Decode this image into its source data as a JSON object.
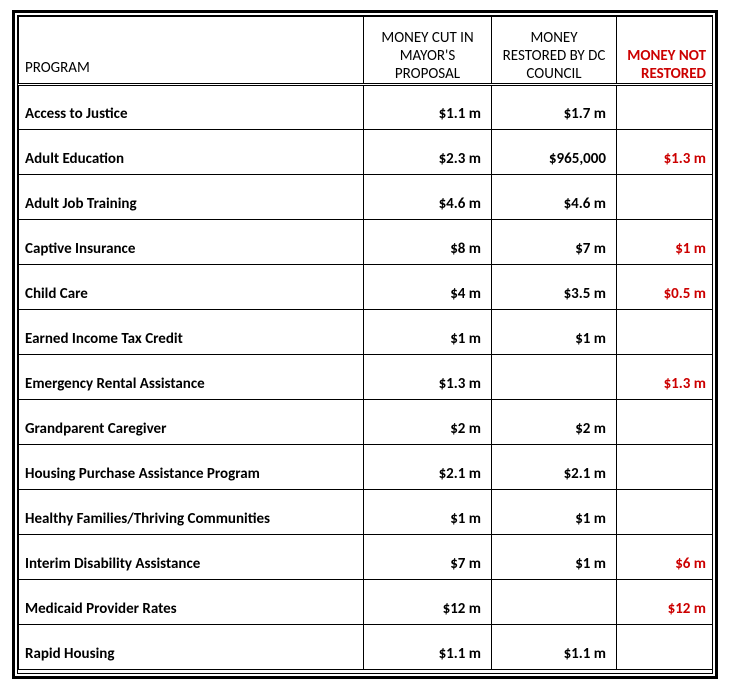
{
  "table": {
    "headers": {
      "program": "PROGRAM",
      "cut": "MONEY CUT IN MAYOR'S PROPOSAL",
      "restored": "MONEY RESTORED BY DC COUNCIL",
      "not_restored": "MONEY NOT RESTORED"
    },
    "rows": [
      {
        "program": "Access to Justice",
        "cut": "$1.1 m",
        "restored": "$1.7 m",
        "not_restored": ""
      },
      {
        "program": "Adult Education",
        "cut": "$2.3 m",
        "restored": "$965,000",
        "not_restored": "$1.3 m"
      },
      {
        "program": "Adult Job Training",
        "cut": "$4.6 m",
        "restored": "$4.6 m",
        "not_restored": ""
      },
      {
        "program": "Captive Insurance",
        "cut": "$8 m",
        "restored": "$7 m",
        "not_restored": "$1 m"
      },
      {
        "program": "Child Care",
        "cut": "$4 m",
        "restored": "$3.5 m",
        "not_restored": "$0.5 m"
      },
      {
        "program": "Earned Income Tax Credit",
        "cut": "$1 m",
        "restored": "$1 m",
        "not_restored": ""
      },
      {
        "program": "Emergency Rental Assistance",
        "cut": "$1.3 m",
        "restored": "",
        "not_restored": "$1.3 m"
      },
      {
        "program": "Grandparent Caregiver",
        "cut": "$2 m",
        "restored": "$2 m",
        "not_restored": ""
      },
      {
        "program": "Housing Purchase Assistance Program",
        "cut": "$2.1 m",
        "restored": "$2.1 m",
        "not_restored": ""
      },
      {
        "program": "Healthy Families/Thriving Communities",
        "cut": "$1 m",
        "restored": "$1 m",
        "not_restored": ""
      },
      {
        "program": "Interim Disability Assistance",
        "cut": "$7 m",
        "restored": "$1 m",
        "not_restored": "$6 m"
      },
      {
        "program": "Medicaid Provider Rates",
        "cut": "$12 m",
        "restored": "",
        "not_restored": "$12 m"
      },
      {
        "program": "Rapid Housing",
        "cut": "$1.1 m",
        "restored": "$1.1 m",
        "not_restored": ""
      }
    ],
    "colors": {
      "not_restored_text": "#cc0000",
      "border": "#000000",
      "background": "#ffffff"
    }
  }
}
